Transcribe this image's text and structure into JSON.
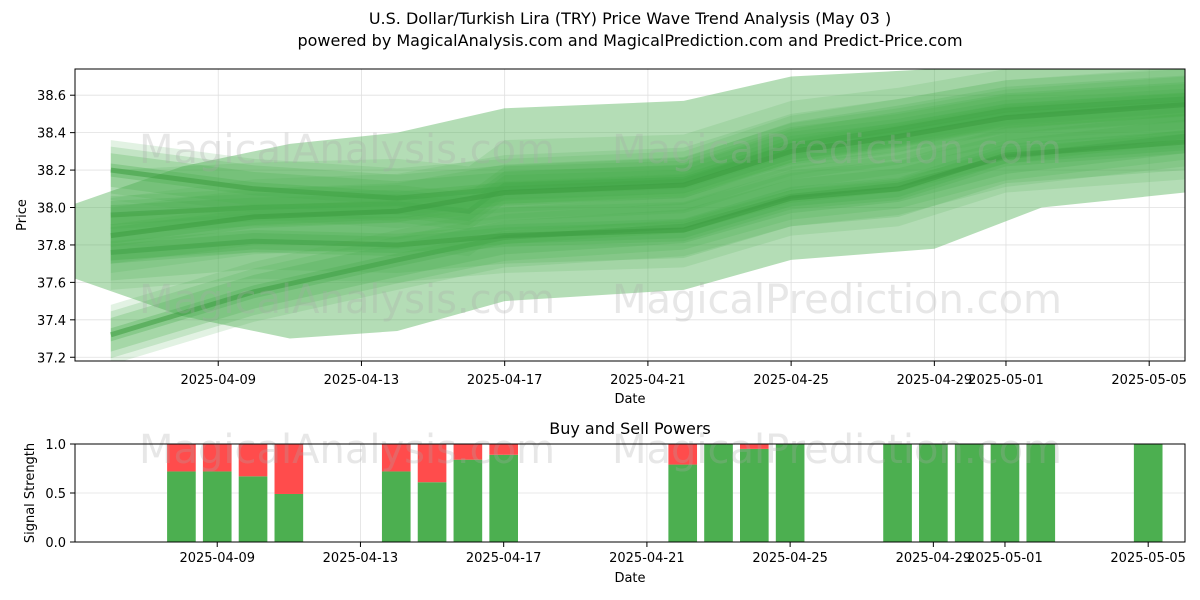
{
  "header": {
    "title": "U.S. Dollar/Turkish Lira (TRY) Price Wave Trend Analysis (May 03 )",
    "subtitle": "powered by MagicalAnalysis.com and MagicalPrediction.com and Predict-Price.com"
  },
  "watermarks": [
    "MagicalAnalysis.com",
    "MagicalPrediction.com"
  ],
  "colors": {
    "band": "#4caf50",
    "buy": "#4caf50",
    "sell": "#ff4c4c",
    "grid": "#e0e0e0"
  },
  "chart_data": [
    {
      "type": "area",
      "xlabel": "Date",
      "ylabel": "Price",
      "x_ticks": [
        "2025-04-09",
        "2025-04-13",
        "2025-04-17",
        "2025-04-21",
        "2025-04-25",
        "2025-04-29",
        "2025-05-01",
        "2025-05-05"
      ],
      "y_ticks": [
        "37.2",
        "37.4",
        "37.6",
        "37.8",
        "38.0",
        "38.2",
        "38.4",
        "38.6"
      ],
      "xlim": [
        "2025-04-05",
        "2025-05-06"
      ],
      "ylim": [
        37.18,
        38.74
      ],
      "grid": true,
      "series": [
        {
          "dates": [
            "2025-04-06",
            "2025-04-10",
            "2025-04-14",
            "2025-04-17",
            "2025-04-22",
            "2025-04-25",
            "2025-04-28",
            "2025-05-01",
            "2025-05-06"
          ],
          "values": [
            37.32,
            37.55,
            37.72,
            37.84,
            37.9,
            38.06,
            38.12,
            38.27,
            38.38
          ]
        },
        {
          "dates": [
            "2025-04-06",
            "2025-04-10",
            "2025-04-14",
            "2025-04-17",
            "2025-04-22",
            "2025-04-25",
            "2025-04-28",
            "2025-05-01",
            "2025-05-06"
          ],
          "values": [
            37.76,
            37.82,
            37.8,
            37.85,
            37.88,
            38.05,
            38.1,
            38.28,
            38.35
          ]
        },
        {
          "dates": [
            "2025-04-06",
            "2025-04-10",
            "2025-04-14",
            "2025-04-16",
            "2025-04-17",
            "2025-04-22",
            "2025-04-25",
            "2025-04-28",
            "2025-05-01",
            "2025-05-06"
          ],
          "values": [
            37.96,
            38.0,
            38.02,
            37.98,
            38.12,
            38.15,
            38.33,
            38.4,
            38.5,
            38.56
          ]
        },
        {
          "dates": [
            "2025-04-06",
            "2025-04-10",
            "2025-04-14",
            "2025-04-17",
            "2025-04-22",
            "2025-04-25",
            "2025-04-28",
            "2025-05-01",
            "2025-05-06"
          ],
          "values": [
            38.2,
            38.1,
            38.05,
            38.1,
            38.14,
            38.33,
            38.42,
            38.52,
            38.58
          ]
        },
        {
          "dates": [
            "2025-04-06",
            "2025-04-10",
            "2025-04-14",
            "2025-04-17",
            "2025-04-22",
            "2025-04-25",
            "2025-04-28",
            "2025-05-01",
            "2025-05-06"
          ],
          "values": [
            37.85,
            37.95,
            37.98,
            38.08,
            38.12,
            38.3,
            38.38,
            38.48,
            38.55
          ]
        }
      ],
      "envelope": {
        "dates": [
          "2025-04-05",
          "2025-04-08",
          "2025-04-11",
          "2025-04-14",
          "2025-04-17",
          "2025-04-22",
          "2025-04-25",
          "2025-04-29",
          "2025-05-02",
          "2025-05-06"
        ],
        "upper": [
          38.02,
          38.22,
          38.34,
          38.4,
          38.53,
          38.57,
          38.7,
          38.74,
          38.74,
          38.74
        ],
        "lower": [
          37.62,
          37.42,
          37.3,
          37.34,
          37.5,
          37.56,
          37.72,
          37.78,
          38.0,
          38.08
        ]
      }
    },
    {
      "type": "bar",
      "title": "Buy and Sell Powers",
      "xlabel": "Date",
      "ylabel": "Signal Strength",
      "x_ticks": [
        "2025-04-09",
        "2025-04-13",
        "2025-04-17",
        "2025-04-21",
        "2025-04-25",
        "2025-04-29",
        "2025-05-01",
        "2025-05-05"
      ],
      "y_ticks": [
        "0.0",
        "0.5",
        "1.0"
      ],
      "ylim": [
        0,
        1
      ],
      "grid": true,
      "categories": [
        "2025-04-08",
        "2025-04-09",
        "2025-04-10",
        "2025-04-11",
        "2025-04-14",
        "2025-04-15",
        "2025-04-16",
        "2025-04-17",
        "2025-04-22",
        "2025-04-23",
        "2025-04-24",
        "2025-04-25",
        "2025-04-28",
        "2025-04-29",
        "2025-04-30",
        "2025-05-01",
        "2025-05-02",
        "2025-05-05"
      ],
      "series": [
        {
          "values": [
            0.72,
            0.72,
            0.67,
            0.49,
            0.72,
            0.61,
            0.84,
            0.89,
            0.79,
            1.0,
            0.95,
            1.0,
            1.0,
            1.0,
            1.0,
            1.0,
            1.0,
            1.0
          ]
        },
        {
          "values": [
            0.28,
            0.28,
            0.33,
            0.51,
            0.28,
            0.39,
            0.16,
            0.11,
            0.21,
            0.0,
            0.05,
            0.0,
            0.0,
            0.0,
            0.0,
            0.0,
            0.0,
            0.0
          ]
        }
      ]
    }
  ]
}
